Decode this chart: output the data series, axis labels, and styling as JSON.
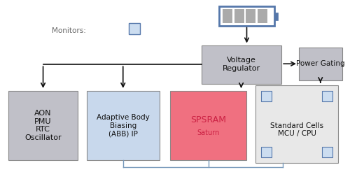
{
  "bg_color": "#ffffff",
  "monitors_label": "Monitors:",
  "monitors_label_color": "#666666",
  "battery_border_color": "#5577aa",
  "battery_body_color": "#aaaaaa",
  "voltage_reg_color": "#c0c0c8",
  "voltage_reg_text": "Voltage\nRegulator",
  "power_gating_color": "#c0c0c8",
  "power_gating_text": "Power Gating",
  "aon_color": "#c0c0c8",
  "aon_text": "AON\nPMU\nRTC\nOscillator",
  "abb_color": "#c8d8ec",
  "abb_text": "Adaptive Body\nBiasing\n(ABB) IP",
  "spsram_color": "#f07080",
  "spsram_text": "SPSRAM",
  "spsram_sub": "Saturn",
  "stdcell_color": "#e8e8e8",
  "stdcell_text": "Standard Cells\nMCU / CPU",
  "arrow_color": "#111111",
  "line_color": "#111111",
  "bottom_line_color": "#7799bb",
  "small_box_border": "#5577aa",
  "small_box_fill": "#ccddf0"
}
